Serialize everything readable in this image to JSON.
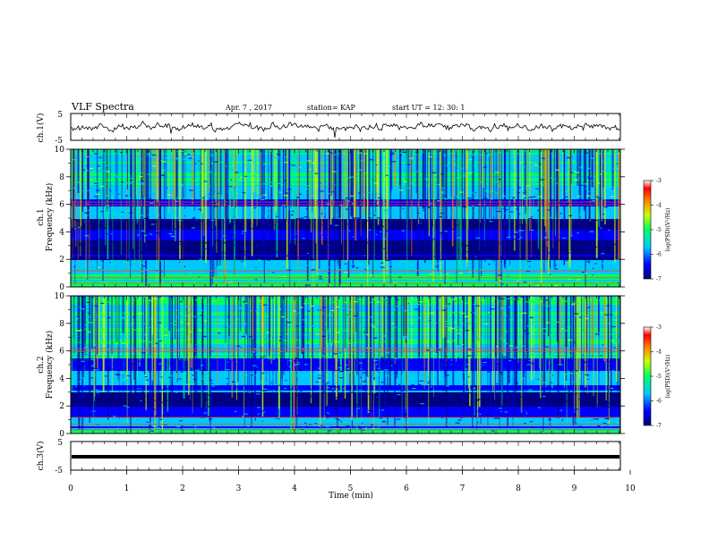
{
  "header": {
    "title": "VLF Spectra",
    "date": "Apr. 7 , 2017",
    "station": "station= KAP",
    "start": "start  UT =   12: 30: 1"
  },
  "chart_data": [
    {
      "type": "line",
      "name": "ch1-waveform",
      "ylabel": "ch.1(V)",
      "ylim": [
        -5,
        5
      ],
      "y_ticks": [
        "5",
        "-5"
      ],
      "xlim": [
        0,
        10
      ]
    },
    {
      "type": "heatmap",
      "name": "ch1-spectrogram",
      "ylabel": "ch.1\nFrequency (kHz)",
      "ylim": [
        0,
        10
      ],
      "y_ticks": [
        "0",
        "2",
        "4",
        "6",
        "8",
        "10"
      ],
      "xlim": [
        0,
        10
      ],
      "colorbar": {
        "label": "log(PSD)(V²/Hz)",
        "range": [
          -7,
          -3
        ],
        "ticks": [
          "-3",
          "-4",
          "-5",
          "-6",
          "-7"
        ]
      }
    },
    {
      "type": "heatmap",
      "name": "ch2-spectrogram",
      "ylabel": "ch.2\nFrequency (kHz)",
      "ylim": [
        0,
        10
      ],
      "y_ticks": [
        "0",
        "2",
        "4",
        "6",
        "8",
        "10"
      ],
      "xlim": [
        0,
        10
      ],
      "colorbar": {
        "label": "log(PSD)(V²/Hz)",
        "range": [
          -7,
          -3
        ],
        "ticks": [
          "-3",
          "-4",
          "-5",
          "-6",
          "-7"
        ]
      }
    },
    {
      "type": "line",
      "name": "ch3-waveform",
      "ylabel": "ch.3(V)",
      "ylim": [
        -5,
        5
      ],
      "y_ticks": [
        "5",
        "-5"
      ],
      "xlim": [
        0,
        10
      ],
      "x_ticks": [
        "0",
        "1",
        "2",
        "3",
        "4",
        "5",
        "6",
        "7",
        "8",
        "9",
        "10"
      ],
      "xlabel": "Time (min)"
    }
  ],
  "colors": {
    "colormap": [
      "#000080",
      "#0000ff",
      "#00c8ff",
      "#00ff64",
      "#c8ff00",
      "#ff8000",
      "#ff0000",
      "#ffffff"
    ]
  }
}
